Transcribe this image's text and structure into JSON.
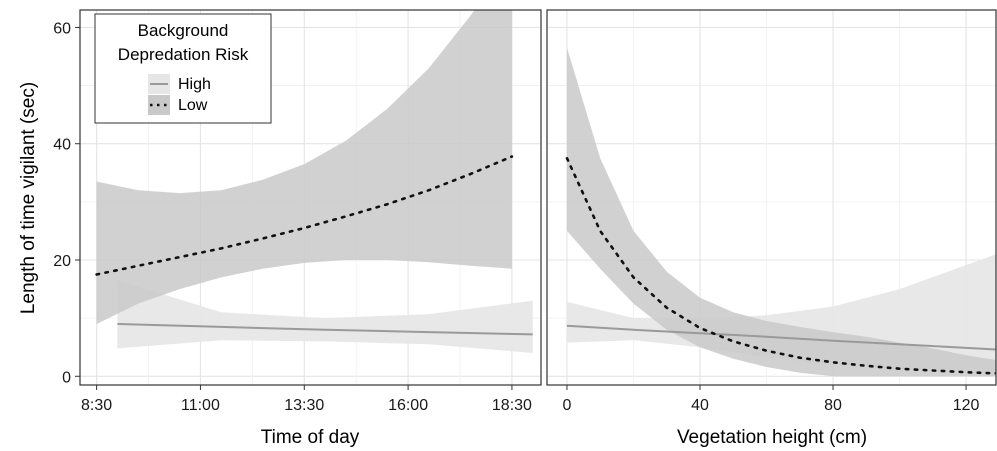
{
  "ylabel": "Length of time vigilant (sec)",
  "legend": {
    "title_line1": "Background",
    "title_line2": "Depredation Risk",
    "placement": "top-left",
    "entries": [
      {
        "name": "High",
        "color": "#9a9a9a",
        "style": "solid"
      },
      {
        "name": "Low",
        "color": "#111111",
        "style": "dotted"
      }
    ]
  },
  "colors": {
    "high_line": "#9a9a9a",
    "high_band": "#e6e6e6",
    "low_line": "#111111",
    "low_band": "#c9c9c9",
    "grid": "#e4e4e4",
    "panel_border": "#333333"
  },
  "chart_data": [
    {
      "type": "line",
      "panel": "left",
      "xlabel": "Time of day",
      "ylabel": "Length of time vigilant (sec)",
      "x_ticks": [
        "8:30",
        "11:00",
        "13:30",
        "16:00",
        "18:30"
      ],
      "x_tick_hours": [
        8.5,
        11,
        13.5,
        16,
        18.5
      ],
      "xlim_hours": [
        8.1,
        19.2
      ],
      "ylim": [
        -1.5,
        63
      ],
      "y_ticks": [
        0,
        20,
        40,
        60
      ],
      "grid": true,
      "series": [
        {
          "name": "High",
          "x_hours": [
            9.0,
            11.5,
            14.0,
            16.5,
            19.0
          ],
          "y": [
            9.0,
            8.5,
            8.0,
            7.6,
            7.2
          ],
          "lower": [
            4.8,
            6.2,
            6.0,
            5.5,
            4.0
          ],
          "upper": [
            16.5,
            11.0,
            10.0,
            10.7,
            13.0
          ]
        },
        {
          "name": "Low",
          "x_hours": [
            8.5,
            9.5,
            10.5,
            11.5,
            12.5,
            13.5,
            14.5,
            15.5,
            16.5,
            17.5,
            18.5
          ],
          "y": [
            17.5,
            19.0,
            20.5,
            22.0,
            23.7,
            25.5,
            27.5,
            29.6,
            32.0,
            34.8,
            37.8
          ],
          "lower": [
            9.0,
            12.5,
            15.0,
            17.0,
            18.5,
            19.5,
            20.0,
            20.0,
            19.6,
            19.0,
            18.5
          ],
          "upper": [
            33.5,
            32.0,
            31.5,
            32.0,
            33.8,
            36.5,
            40.5,
            46.0,
            53.0,
            62.0,
            72.0
          ]
        }
      ]
    },
    {
      "type": "line",
      "panel": "right",
      "xlabel": "Vegetation height (cm)",
      "xlim": [
        -6,
        129
      ],
      "ylim": [
        -1.5,
        63
      ],
      "x_ticks": [
        0,
        40,
        80,
        120
      ],
      "y_ticks": [
        0,
        20,
        40,
        60
      ],
      "grid": true,
      "series": [
        {
          "name": "High",
          "x": [
            0,
            20,
            40,
            60,
            80,
            100,
            129
          ],
          "y": [
            8.7,
            8.0,
            7.4,
            6.8,
            6.1,
            5.5,
            4.6
          ],
          "lower": [
            5.8,
            6.2,
            5.0,
            3.3,
            2.0,
            1.2,
            0.5
          ],
          "upper": [
            12.8,
            10.0,
            9.8,
            10.5,
            12.0,
            15.0,
            21.0
          ]
        },
        {
          "name": "Low",
          "x": [
            0,
            10,
            20,
            30,
            40,
            50,
            60,
            70,
            80,
            90,
            100,
            110,
            120,
            129
          ],
          "y": [
            37.5,
            25.0,
            17.0,
            11.8,
            8.3,
            6.0,
            4.4,
            3.2,
            2.4,
            1.8,
            1.3,
            1.0,
            0.7,
            0.5
          ],
          "lower": [
            25.0,
            18.5,
            12.5,
            8.0,
            5.0,
            3.0,
            1.6,
            0.6,
            0.0,
            0.0,
            0.0,
            0.0,
            0.0,
            0.0
          ],
          "upper": [
            56.5,
            37.5,
            25.0,
            18.0,
            13.5,
            11.0,
            9.5,
            8.5,
            7.6,
            6.8,
            5.8,
            4.8,
            3.6,
            2.8
          ]
        }
      ]
    }
  ]
}
